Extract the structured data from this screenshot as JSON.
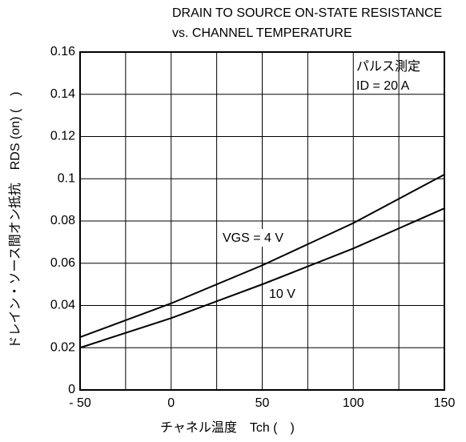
{
  "chart_data": {
    "type": "line",
    "title": [
      "DRAIN TO SOURCE ON-STATE RESISTANCE",
      "vs. CHANNEL TEMPERATURE"
    ],
    "x_label": "チャネル温度　Tch (　)",
    "y_label": "ドレイン・ソース間オン抵抗　RDS (on) (　)",
    "annotations": [
      "パルス測定",
      "ID = 20 A"
    ],
    "x": [
      -50,
      0,
      50,
      100,
      150
    ],
    "series": [
      {
        "name": "VGS = 4 V",
        "color": "#000000",
        "values": [
          0.025,
          0.041,
          0.059,
          0.079,
          0.102
        ]
      },
      {
        "name": "10 V",
        "color": "#000000",
        "values": [
          0.02,
          0.034,
          0.05,
          0.067,
          0.086
        ]
      }
    ],
    "xlim": [
      -50,
      150
    ],
    "xticks": [
      {
        "value": -50,
        "label": "- 50"
      },
      0,
      50,
      100,
      150
    ],
    "xminor": [
      -25,
      25,
      75,
      125
    ],
    "ylim": [
      0,
      0.16
    ],
    "yticks": [
      0,
      0.02,
      0.04,
      0.06,
      0.08,
      0.1,
      0.12,
      0.14,
      0.16
    ],
    "grid": true
  }
}
